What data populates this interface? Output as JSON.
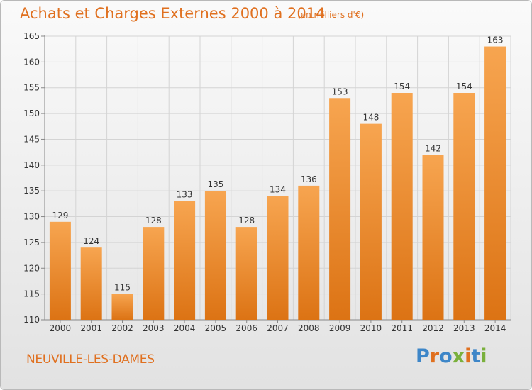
{
  "header": {
    "title": "Achats et Charges Externes 2000 à 2014",
    "unit": "(en milliers d'€)"
  },
  "footer": {
    "commune": "NEUVILLE-LES-DAMES",
    "logo": "Proxiti"
  },
  "colors": {
    "title": "#e0701f",
    "bar_light": "#f7a550",
    "bar_dark": "#de7516",
    "logo_letters": [
      "#3d86c8",
      "#e0701f",
      "#3d86c8",
      "#7ab03c",
      "#e0701f",
      "#3d86c8",
      "#7ab03c"
    ]
  },
  "chart_data": {
    "type": "bar",
    "categories": [
      "2000",
      "2001",
      "2002",
      "2003",
      "2004",
      "2005",
      "2006",
      "2007",
      "2008",
      "2009",
      "2010",
      "2011",
      "2012",
      "2013",
      "2014"
    ],
    "values": [
      129,
      124,
      115,
      128,
      133,
      135,
      128,
      134,
      136,
      153,
      148,
      154,
      142,
      154,
      163
    ],
    "ylim": [
      110,
      165
    ],
    "yticks": [
      110,
      115,
      120,
      125,
      130,
      135,
      140,
      145,
      150,
      155,
      160,
      165
    ],
    "grid": true,
    "data_labels": true,
    "xlabel": "",
    "ylabel": ""
  }
}
